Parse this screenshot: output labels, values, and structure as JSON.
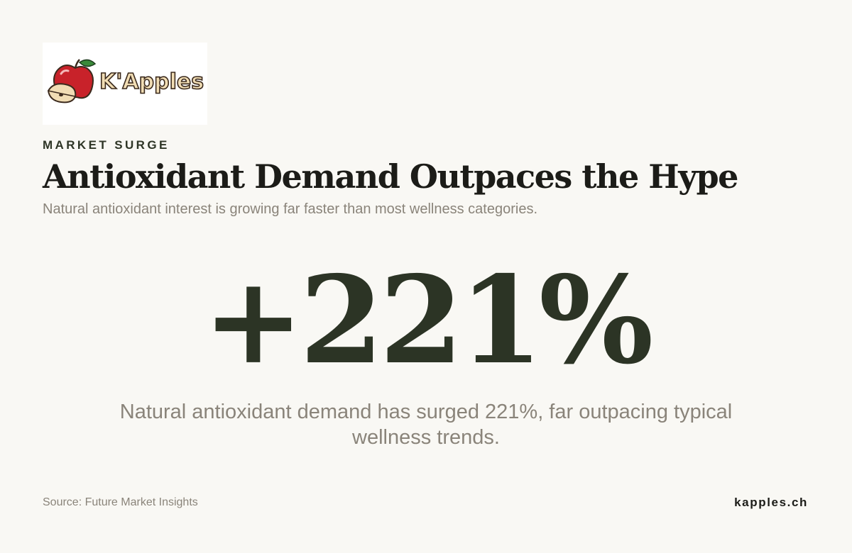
{
  "logo": {
    "text": "K'Apples",
    "icon": "apple-icon"
  },
  "eyebrow": "MARKET SURGE",
  "title": "Antioxidant Demand Outpaces the Hype",
  "subtitle": "Natural antioxidant interest is growing far faster than most wellness categories.",
  "stat": {
    "value": "+221%"
  },
  "description": "Natural antioxidant demand has surged 221%, far outpacing typical wellness trends.",
  "footer": {
    "source": "Source: Future Market Insights",
    "site": "kapples.ch"
  },
  "colors": {
    "background": "#f9f8f4",
    "stat": "#2c3425",
    "muted": "#8a847a",
    "heading": "#1c1c18",
    "apple_red": "#c8222a"
  }
}
